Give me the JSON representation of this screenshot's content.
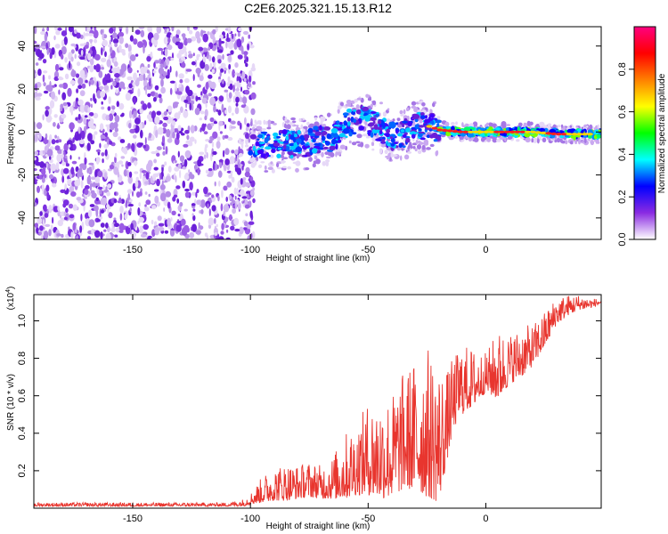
{
  "chart_data": [
    {
      "type": "heatmap",
      "title": "C2E6.2025.321.15.13.R12",
      "xlabel": "Height of straight line (km)",
      "ylabel": "Frequency (Hz)",
      "xlim": [
        -192,
        49
      ],
      "ylim": [
        -50,
        49
      ],
      "xticks": [
        -150,
        -100,
        -50,
        0
      ],
      "xtick_labels": [
        "-150",
        "-100",
        "-50",
        "0"
      ],
      "yticks": [
        -40,
        -20,
        0,
        20,
        40
      ],
      "ytick_labels": [
        "-40",
        "-20",
        "0",
        "20",
        "40"
      ],
      "noise_region_x": [
        -192,
        -100
      ],
      "signal_region_x": [
        -100,
        49
      ],
      "signal_centerline": [
        {
          "x": -100,
          "y": -4
        },
        {
          "x": -95,
          "y": -6
        },
        {
          "x": -90,
          "y": -7
        },
        {
          "x": -85,
          "y": -5
        },
        {
          "x": -80,
          "y": -6
        },
        {
          "x": -75,
          "y": -5
        },
        {
          "x": -70,
          "y": -3
        },
        {
          "x": -65,
          "y": -3
        },
        {
          "x": -60,
          "y": 3
        },
        {
          "x": -55,
          "y": 6
        },
        {
          "x": -50,
          "y": 5
        },
        {
          "x": -45,
          "y": 2
        },
        {
          "x": -40,
          "y": -2
        },
        {
          "x": -35,
          "y": -1
        },
        {
          "x": -30,
          "y": 2
        },
        {
          "x": -25,
          "y": 3
        },
        {
          "x": -20,
          "y": 1
        },
        {
          "x": -10,
          "y": 0
        },
        {
          "x": 0,
          "y": 0
        },
        {
          "x": 10,
          "y": 0
        },
        {
          "x": 20,
          "y": 0
        },
        {
          "x": 30,
          "y": -1
        },
        {
          "x": 40,
          "y": -1
        },
        {
          "x": 49,
          "y": -1
        }
      ],
      "colorbar": {
        "label": "Normalized spectral amplitude",
        "range": [
          0,
          1
        ],
        "ticks": [
          0.0,
          0.2,
          0.4,
          0.6,
          0.8
        ],
        "tick_labels": [
          "0.0",
          "0.2",
          "0.4",
          "0.6",
          "0.8"
        ],
        "colors": [
          "#ffffff",
          "#8a2be2",
          "#0000ff",
          "#00ffff",
          "#00ff00",
          "#ffff00",
          "#ff8000",
          "#ff0000",
          "#ff0080"
        ]
      }
    },
    {
      "type": "line",
      "xlabel": "Height of straight line (km)",
      "ylabel": "SNR (10 * v/v)",
      "y_multiplier_label": "(x10",
      "y_multiplier_exponent": "4",
      "y_multiplier_close": ")",
      "xlim": [
        -192,
        49
      ],
      "ylim": [
        0,
        1.14
      ],
      "xticks": [
        -150,
        -100,
        -50,
        0
      ],
      "xtick_labels": [
        "-150",
        "-100",
        "-50",
        "0"
      ],
      "yticks": [
        0.2,
        0.4,
        0.6,
        0.8,
        1.0
      ],
      "ytick_labels": [
        "0.2",
        "0.4",
        "0.6",
        "0.8",
        "1.0"
      ],
      "line_color": "#e8352e",
      "series": [
        {
          "name": "SNR",
          "x": [
            -192,
            -150,
            -110,
            -103,
            -100,
            -95,
            -90,
            -85,
            -80,
            -75,
            -70,
            -65,
            -60,
            -55,
            -50,
            -45,
            -40,
            -35,
            -30,
            -25,
            -20,
            -17,
            -15,
            -12,
            -10,
            -5,
            0,
            5,
            10,
            15,
            20,
            25,
            30,
            35,
            40,
            45,
            49
          ],
          "low": [
            0.01,
            0.01,
            0.01,
            0.01,
            0.02,
            0.03,
            0.04,
            0.04,
            0.05,
            0.06,
            0.05,
            0.05,
            0.05,
            0.07,
            0.07,
            0.05,
            0.06,
            0.1,
            0.1,
            0.06,
            0.03,
            0.22,
            0.35,
            0.48,
            0.5,
            0.55,
            0.62,
            0.58,
            0.66,
            0.7,
            0.76,
            0.86,
            0.98,
            1.03,
            1.06,
            1.07,
            1.09
          ],
          "high": [
            0.03,
            0.03,
            0.03,
            0.05,
            0.08,
            0.17,
            0.22,
            0.24,
            0.23,
            0.25,
            0.23,
            0.28,
            0.4,
            0.45,
            0.57,
            0.6,
            0.61,
            0.73,
            0.8,
            0.87,
            0.78,
            0.72,
            0.78,
            0.84,
            0.88,
            0.85,
            0.83,
            0.95,
            0.93,
            0.97,
            0.98,
            1.05,
            1.13,
            1.14,
            1.14,
            1.12,
            1.12
          ]
        }
      ]
    }
  ]
}
